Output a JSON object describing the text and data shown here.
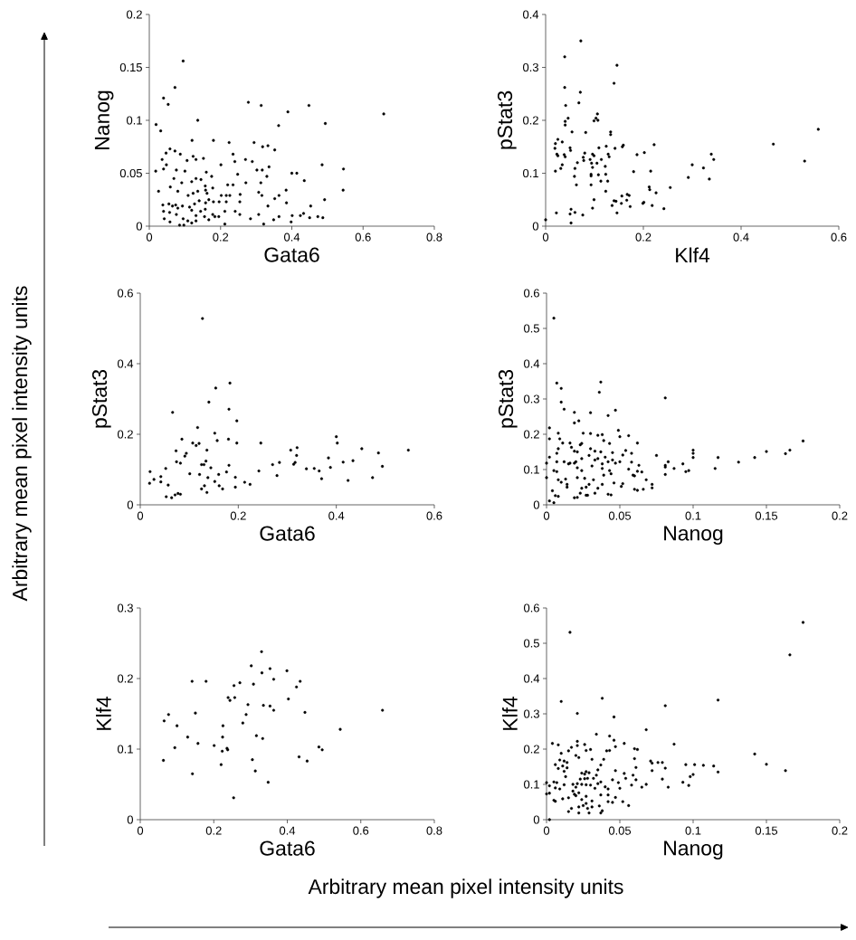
{
  "chart_data": [
    {
      "type": "scatter",
      "xlabel": "Gata6",
      "ylabel": "Nanog",
      "color": "#000000",
      "marker": "circle",
      "xlim": [
        0,
        0.8
      ],
      "ylim": [
        0,
        0.2
      ],
      "xticks": [
        0,
        0.2,
        0.4,
        0.6,
        0.8
      ],
      "yticks": [
        0,
        0.05,
        0.1,
        0.15,
        0.2
      ],
      "annotations": [
        "Arbitrary mean pixel intensity units",
        "Arbitrary mean pixel intensity units"
      ],
      "x": [
        0.095,
        0.072,
        0.04,
        0.053,
        0.136,
        0.019,
        0.032,
        0.278,
        0.314,
        0.389,
        0.448,
        0.494,
        0.363,
        0.658,
        0.12,
        0.18,
        0.224,
        0.294,
        0.318,
        0.333,
        0.352,
        0.058,
        0.072,
        0.047,
        0.087,
        0.036,
        0.106,
        0.123,
        0.131,
        0.152,
        0.235,
        0.24,
        0.27,
        0.289,
        0.201,
        0.018,
        0.04,
        0.048,
        0.076,
        0.1,
        0.16,
        0.248,
        0.302,
        0.317,
        0.336,
        0.4,
        0.414,
        0.485,
        0.545,
        0.435,
        0.544,
        0.33,
        0.313,
        0.271,
        0.22,
        0.235,
        0.175,
        0.384,
        0.364,
        0.352,
        0.333,
        0.385,
        0.453,
        0.492,
        0.026,
        0.059,
        0.069,
        0.091,
        0.119,
        0.131,
        0.145,
        0.157,
        0.158,
        0.08,
        0.136,
        0.109,
        0.123,
        0.162,
        0.178,
        0.202,
        0.216,
        0.226,
        0.255,
        0.254,
        0.307,
        0.316,
        0.038,
        0.055,
        0.065,
        0.074,
        0.08,
        0.093,
        0.113,
        0.127,
        0.14,
        0.158,
        0.167,
        0.18,
        0.196,
        0.216,
        0.04,
        0.057,
        0.076,
        0.119,
        0.131,
        0.144,
        0.157,
        0.178,
        0.195,
        0.212,
        0.241,
        0.254,
        0.284,
        0.307,
        0.042,
        0.058,
        0.085,
        0.095,
        0.097,
        0.108,
        0.119,
        0.131,
        0.155,
        0.167,
        0.184,
        0.212,
        0.321,
        0.349,
        0.364,
        0.401,
        0.398,
        0.424,
        0.433,
        0.45,
        0.473,
        0.487
      ],
      "values": [
        0.156,
        0.131,
        0.121,
        0.115,
        0.1,
        0.096,
        0.09,
        0.117,
        0.114,
        0.108,
        0.114,
        0.097,
        0.095,
        0.106,
        0.081,
        0.081,
        0.079,
        0.079,
        0.075,
        0.076,
        0.072,
        0.073,
        0.071,
        0.069,
        0.068,
        0.063,
        0.062,
        0.066,
        0.063,
        0.064,
        0.068,
        0.061,
        0.063,
        0.061,
        0.058,
        0.052,
        0.054,
        0.058,
        0.053,
        0.052,
        0.051,
        0.049,
        0.053,
        0.053,
        0.056,
        0.05,
        0.05,
        0.058,
        0.054,
        0.043,
        0.034,
        0.047,
        0.041,
        0.041,
        0.039,
        0.039,
        0.047,
        0.034,
        0.029,
        0.026,
        0.019,
        0.022,
        0.019,
        0.025,
        0.033,
        0.037,
        0.045,
        0.041,
        0.042,
        0.045,
        0.044,
        0.038,
        0.034,
        0.033,
        0.033,
        0.029,
        0.031,
        0.031,
        0.036,
        0.029,
        0.029,
        0.029,
        0.03,
        0.023,
        0.032,
        0.029,
        0.02,
        0.021,
        0.019,
        0.02,
        0.017,
        0.019,
        0.018,
        0.021,
        0.024,
        0.022,
        0.025,
        0.023,
        0.023,
        0.023,
        0.014,
        0.013,
        0.011,
        0.015,
        0.01,
        0.014,
        0.016,
        0.011,
        0.009,
        0.014,
        0.014,
        0.011,
        0.007,
        0.011,
        0.007,
        0.004,
        0.001,
        0.007,
        0.001,
        0.005,
        0.003,
        0.005,
        0.009,
        0.006,
        0.009,
        0.002,
        0.002,
        0.006,
        0.009,
        0.01,
        0.004,
        0.01,
        0.012,
        0.008,
        0.009,
        0.008
      ]
    },
    {
      "type": "scatter",
      "xlabel": "Klf4",
      "ylabel": "pStat3",
      "color": "#000000",
      "marker": "circle",
      "xlim": [
        0,
        0.6
      ],
      "ylim": [
        0,
        0.4
      ],
      "xticks": [
        0,
        0.2,
        0.4,
        0.6
      ],
      "yticks": [
        0,
        0.1,
        0.2,
        0.3,
        0.4
      ],
      "x": [
        0,
        0.072,
        0.039,
        0.146,
        0.14,
        0.039,
        0.071,
        0.041,
        0.068,
        0.046,
        0.04,
        0.04,
        0.106,
        0.103,
        0.099,
        0.107,
        0.054,
        0.082,
        0.133,
        0.133,
        0.025,
        0.034,
        0.02,
        0.019,
        0.05,
        0.051,
        0.023,
        0.038,
        0.025,
        0.04,
        0.034,
        0.031,
        0.02,
        0.06,
        0.065,
        0.08,
        0.077,
        0.078,
        0.091,
        0.096,
        0.099,
        0.094,
        0.105,
        0.114,
        0.109,
        0.124,
        0.128,
        0.13,
        0.142,
        0.157,
        0.159,
        0.222,
        0.202,
        0.187,
        0.122,
        0.096,
        0.093,
        0.093,
        0.059,
        0.108,
        0.123,
        0.18,
        0.215,
        0.063,
        0.093,
        0.113,
        0.127,
        0.123,
        0.212,
        0.213,
        0.226,
        0.255,
        0.292,
        0.3,
        0.323,
        0.335,
        0.339,
        0.344,
        0.466,
        0.53,
        0.558,
        0.099,
        0.096,
        0.052,
        0.05,
        0.06,
        0.022,
        0.052,
        0.076,
        0.136,
        0.14,
        0.144,
        0.146,
        0.155,
        0.156,
        0.166,
        0.167,
        0.171,
        0.173,
        0.199,
        0.201,
        0.218,
        0.242
      ],
      "values": [
        0.012,
        0.35,
        0.32,
        0.304,
        0.27,
        0.262,
        0.253,
        0.228,
        0.233,
        0.204,
        0.198,
        0.191,
        0.212,
        0.204,
        0.199,
        0.2,
        0.178,
        0.177,
        0.178,
        0.173,
        0.164,
        0.159,
        0.156,
        0.147,
        0.148,
        0.143,
        0.136,
        0.135,
        0.133,
        0.131,
        0.116,
        0.109,
        0.104,
        0.109,
        0.12,
        0.138,
        0.13,
        0.124,
        0.126,
        0.136,
        0.133,
        0.119,
        0.119,
        0.126,
        0.148,
        0.151,
        0.136,
        0.131,
        0.147,
        0.15,
        0.153,
        0.154,
        0.139,
        0.135,
        0.113,
        0.111,
        0.098,
        0.095,
        0.094,
        0.097,
        0.098,
        0.103,
        0.104,
        0.078,
        0.078,
        0.085,
        0.085,
        0.066,
        0.074,
        0.069,
        0.063,
        0.073,
        0.092,
        0.116,
        0.11,
        0.089,
        0.136,
        0.126,
        0.155,
        0.123,
        0.183,
        0.05,
        0.034,
        0.032,
        0.023,
        0.026,
        0.025,
        0.006,
        0.021,
        0.039,
        0.048,
        0.047,
        0.025,
        0.043,
        0.057,
        0.049,
        0.06,
        0.058,
        0.037,
        0.043,
        0.045,
        0.039,
        0.033
      ]
    },
    {
      "type": "scatter",
      "xlabel": "Gata6",
      "ylabel": "pStat3",
      "color": "#000000",
      "marker": "circle",
      "xlim": [
        0,
        0.6
      ],
      "ylim": [
        0,
        0.6
      ],
      "xticks": [
        0,
        0.2,
        0.4,
        0.6
      ],
      "yticks": [
        0,
        0.2,
        0.4,
        0.6
      ],
      "x": [
        0.127,
        0.183,
        0.154,
        0.14,
        0.181,
        0.066,
        0.197,
        0.117,
        0.152,
        0.085,
        0.157,
        0.18,
        0.197,
        0.107,
        0.114,
        0.12,
        0.246,
        0.073,
        0.136,
        0.094,
        0.091,
        0.074,
        0.082,
        0.125,
        0.13,
        0.134,
        0.144,
        0.176,
        0.181,
        0.101,
        0.121,
        0.138,
        0.16,
        0.02,
        0.019,
        0.028,
        0.042,
        0.042,
        0.052,
        0.057,
        0.053,
        0.064,
        0.071,
        0.077,
        0.082,
        0.125,
        0.131,
        0.136,
        0.152,
        0.161,
        0.168,
        0.194,
        0.194,
        0.213,
        0.224,
        0.242,
        0.27,
        0.279,
        0.284,
        0.307,
        0.313,
        0.316,
        0.319,
        0.32,
        0.339,
        0.355,
        0.365,
        0.37,
        0.384,
        0.388,
        0.4,
        0.402,
        0.414,
        0.424,
        0.434,
        0.452,
        0.474,
        0.486,
        0.494,
        0.547
      ],
      "values": [
        0.528,
        0.345,
        0.331,
        0.291,
        0.271,
        0.262,
        0.238,
        0.219,
        0.203,
        0.186,
        0.182,
        0.186,
        0.175,
        0.175,
        0.168,
        0.174,
        0.175,
        0.153,
        0.155,
        0.146,
        0.138,
        0.122,
        0.118,
        0.114,
        0.114,
        0.124,
        0.105,
        0.093,
        0.112,
        0.088,
        0.086,
        0.077,
        0.086,
        0.094,
        0.061,
        0.072,
        0.08,
        0.065,
        0.103,
        0.056,
        0.023,
        0.02,
        0.028,
        0.032,
        0.03,
        0.045,
        0.054,
        0.035,
        0.066,
        0.054,
        0.045,
        0.078,
        0.05,
        0.064,
        0.058,
        0.096,
        0.114,
        0.083,
        0.12,
        0.155,
        0.115,
        0.12,
        0.14,
        0.162,
        0.102,
        0.103,
        0.096,
        0.074,
        0.133,
        0.106,
        0.193,
        0.175,
        0.121,
        0.069,
        0.125,
        0.159,
        0.077,
        0.147,
        0.109,
        0.155
      ]
    },
    {
      "type": "scatter",
      "xlabel": "Nanog",
      "ylabel": "pStat3",
      "color": "#000000",
      "marker": "circle",
      "xlim": [
        0,
        0.2
      ],
      "ylim": [
        0,
        0.6
      ],
      "xticks": [
        0,
        0.05,
        0.1,
        0.15,
        0.2
      ],
      "yticks": [
        0,
        0.1,
        0.2,
        0.3,
        0.4,
        0.5,
        0.6
      ],
      "x": [
        0.005,
        0.007,
        0.01,
        0.037,
        0.036,
        0.081,
        0.01,
        0.012,
        0.019,
        0.03,
        0.047,
        0.042,
        0.019,
        0.022,
        0.002,
        0.002,
        0.008,
        0.009,
        0.011,
        0.025,
        0.03,
        0.035,
        0.038,
        0.039,
        0.043,
        0.049,
        0.05,
        0.056,
        0.062,
        0.016,
        0.024,
        0.0,
        0.0,
        0.002,
        0.007,
        0.008,
        0.007,
        0.012,
        0.015,
        0.016,
        0.017,
        0.019,
        0.021,
        0.023,
        0.024,
        0.019,
        0.02,
        0.021,
        0.024,
        0.029,
        0.03,
        0.031,
        0.033,
        0.033,
        0.035,
        0.037,
        0.038,
        0.038,
        0.04,
        0.042,
        0.043,
        0.045,
        0.045,
        0.047,
        0.05,
        0.052,
        0.054,
        0.056,
        0.058,
        0.058,
        0.059,
        0.06,
        0.062,
        0.063,
        0.065,
        0.005,
        0.007,
        0.008,
        0.01,
        0.013,
        0.014,
        0.014,
        0.021,
        0.024,
        0.026,
        0.027,
        0.028,
        0.029,
        0.032,
        0.033,
        0.035,
        0.038,
        0.039,
        0.044,
        0.046,
        0.051,
        0.052,
        0.06,
        0.062,
        0.066,
        0.068,
        0.072,
        0.072,
        0.004,
        0.006,
        0.008,
        0.002,
        0.005,
        0.019,
        0.021,
        0.023,
        0.027,
        0.042,
        0.044,
        0.075,
        0.081,
        0.081,
        0.081,
        0.083,
        0.087,
        0.093,
        0.095,
        0.097,
        0.1,
        0.1,
        0.1,
        0.115,
        0.117,
        0.131,
        0.142,
        0.15,
        0.163,
        0.166,
        0.175
      ],
      "values": [
        0.529,
        0.345,
        0.33,
        0.348,
        0.319,
        0.303,
        0.291,
        0.271,
        0.262,
        0.261,
        0.268,
        0.253,
        0.232,
        0.238,
        0.218,
        0.187,
        0.203,
        0.187,
        0.175,
        0.203,
        0.202,
        0.197,
        0.199,
        0.182,
        0.174,
        0.211,
        0.193,
        0.196,
        0.175,
        0.175,
        0.174,
        0.077,
        0.118,
        0.135,
        0.146,
        0.159,
        0.122,
        0.122,
        0.116,
        0.118,
        0.163,
        0.152,
        0.15,
        0.17,
        0.131,
        0.118,
        0.122,
        0.105,
        0.097,
        0.14,
        0.159,
        0.11,
        0.127,
        0.152,
        0.131,
        0.15,
        0.116,
        0.103,
        0.135,
        0.122,
        0.097,
        0.148,
        0.127,
        0.118,
        0.122,
        0.141,
        0.154,
        0.101,
        0.146,
        0.121,
        0.084,
        0.082,
        0.095,
        0.112,
        0.093,
        0.097,
        0.094,
        0.071,
        0.064,
        0.073,
        0.058,
        0.05,
        0.077,
        0.047,
        0.075,
        0.05,
        0.027,
        0.058,
        0.071,
        0.033,
        0.047,
        0.058,
        0.084,
        0.088,
        0.062,
        0.052,
        0.06,
        0.044,
        0.041,
        0.044,
        0.071,
        0.058,
        0.048,
        0.04,
        0.026,
        0.024,
        0.011,
        0.006,
        0.02,
        0.021,
        0.033,
        0.027,
        0.03,
        0.028,
        0.14,
        0.112,
        0.107,
        0.086,
        0.122,
        0.103,
        0.116,
        0.094,
        0.097,
        0.155,
        0.146,
        0.134,
        0.103,
        0.134,
        0.121,
        0.134,
        0.151,
        0.145,
        0.155,
        0.181
      ]
    },
    {
      "type": "scatter",
      "xlabel": "Gata6",
      "ylabel": "Klf4",
      "color": "#000000",
      "marker": "circle",
      "xlim": [
        0,
        0.8
      ],
      "ylim": [
        0,
        0.3
      ],
      "xticks": [
        0,
        0.2,
        0.4,
        0.6,
        0.8
      ],
      "yticks": [
        0,
        0.1,
        0.2,
        0.3
      ],
      "x": [
        0.33,
        0.302,
        0.353,
        0.331,
        0.399,
        0.363,
        0.141,
        0.179,
        0.271,
        0.308,
        0.255,
        0.435,
        0.425,
        0.239,
        0.244,
        0.257,
        0.403,
        0.293,
        0.335,
        0.353,
        0.363,
        0.448,
        0.659,
        0.065,
        0.077,
        0.15,
        0.288,
        0.279,
        0.1,
        0.225,
        0.129,
        0.224,
        0.316,
        0.333,
        0.544,
        0.157,
        0.201,
        0.094,
        0.236,
        0.238,
        0.223,
        0.486,
        0.495,
        0.063,
        0.305,
        0.432,
        0.454,
        0.22,
        0.142,
        0.313,
        0.348,
        0.254
      ],
      "values": [
        0.238,
        0.218,
        0.214,
        0.208,
        0.211,
        0.199,
        0.196,
        0.196,
        0.194,
        0.192,
        0.19,
        0.196,
        0.188,
        0.173,
        0.169,
        0.173,
        0.171,
        0.163,
        0.162,
        0.161,
        0.155,
        0.152,
        0.155,
        0.14,
        0.149,
        0.151,
        0.149,
        0.137,
        0.133,
        0.133,
        0.117,
        0.117,
        0.119,
        0.115,
        0.128,
        0.108,
        0.105,
        0.102,
        0.101,
        0.099,
        0.097,
        0.103,
        0.099,
        0.084,
        0.085,
        0.089,
        0.083,
        0.078,
        0.065,
        0.069,
        0.053,
        0.031
      ]
    },
    {
      "type": "scatter",
      "xlabel": "Nanog",
      "ylabel": "Klf4",
      "color": "#000000",
      "marker": "circle",
      "xlim": [
        0,
        0.2
      ],
      "ylim": [
        0,
        0.6
      ],
      "xticks": [
        0,
        0.05,
        0.1,
        0.15,
        0.2
      ],
      "yticks": [
        0,
        0.1,
        0.2,
        0.3,
        0.4,
        0.5,
        0.6
      ],
      "x": [
        0.175,
        0.166,
        0.016,
        0.01,
        0.038,
        0.117,
        0.081,
        0.021,
        0.046,
        0.068,
        0.034,
        0.043,
        0.004,
        0.008,
        0.021,
        0.021,
        0.026,
        0.046,
        0.047,
        0.053,
        0.087,
        0.017,
        0.015,
        0.027,
        0.03,
        0.041,
        0.043,
        0.06,
        0.062,
        0.01,
        0.02,
        0.022,
        0.031,
        0.039,
        0.06,
        0.142,
        0.006,
        0.009,
        0.012,
        0.014,
        0.008,
        0.011,
        0.014,
        0.012,
        0.037,
        0.035,
        0.061,
        0.071,
        0.072,
        0.076,
        0.079,
        0.081,
        0.072,
        0.095,
        0.101,
        0.107,
        0.114,
        0.117,
        0.15,
        0.163,
        0.024,
        0.026,
        0.027,
        0.029,
        0.034,
        0.047,
        0.053,
        0.059,
        0.013,
        0.023,
        0.026,
        0.028,
        0.032,
        0.045,
        0.054,
        0.061,
        0.079,
        0.093,
        0.097,
        0.098,
        0.1,
        0.0,
        0.002,
        0.005,
        0.007,
        0.012,
        0.018,
        0.02,
        0.021,
        0.024,
        0.027,
        0.03,
        0.033,
        0.035,
        0.037,
        0.04,
        0.042,
        0.049,
        0.05,
        0.058,
        0.065,
        0.068,
        0.083,
        0.0,
        0.002,
        0.006,
        0.009,
        0.005,
        0.006,
        0.011,
        0.015,
        0.018,
        0.019,
        0.02,
        0.022,
        0.024,
        0.027,
        0.031,
        0.037,
        0.042,
        0.047,
        0.042,
        0.045,
        0.052,
        0.056,
        0.015,
        0.017,
        0.022,
        0.022,
        0.025,
        0.027,
        0.028,
        0.029,
        0.031,
        0.036,
        0.038,
        0.037,
        0.002
      ],
      "values": [
        0.559,
        0.467,
        0.531,
        0.335,
        0.344,
        0.339,
        0.323,
        0.301,
        0.291,
        0.255,
        0.242,
        0.237,
        0.216,
        0.212,
        0.222,
        0.21,
        0.213,
        0.225,
        0.207,
        0.216,
        0.214,
        0.205,
        0.195,
        0.196,
        0.199,
        0.195,
        0.196,
        0.201,
        0.199,
        0.188,
        0.182,
        0.176,
        0.171,
        0.171,
        0.173,
        0.186,
        0.156,
        0.169,
        0.166,
        0.162,
        0.145,
        0.152,
        0.147,
        0.137,
        0.155,
        0.141,
        0.148,
        0.166,
        0.16,
        0.162,
        0.162,
        0.146,
        0.139,
        0.156,
        0.156,
        0.154,
        0.152,
        0.135,
        0.157,
        0.139,
        0.132,
        0.129,
        0.136,
        0.133,
        0.126,
        0.139,
        0.131,
        0.126,
        0.122,
        0.115,
        0.116,
        0.117,
        0.117,
        0.113,
        0.117,
        0.113,
        0.115,
        0.106,
        0.097,
        0.122,
        0.128,
        0.105,
        0.096,
        0.107,
        0.105,
        0.099,
        0.1,
        0.092,
        0.102,
        0.1,
        0.099,
        0.098,
        0.089,
        0.102,
        0.107,
        0.093,
        0.087,
        0.105,
        0.089,
        0.098,
        0.092,
        0.1,
        0.092,
        0.073,
        0.075,
        0.09,
        0.087,
        0.055,
        0.052,
        0.059,
        0.062,
        0.081,
        0.072,
        0.068,
        0.076,
        0.057,
        0.066,
        0.053,
        0.07,
        0.07,
        0.063,
        0.051,
        0.049,
        0.051,
        0.04,
        0.023,
        0.032,
        0.036,
        0.019,
        0.04,
        0.046,
        0.032,
        0.019,
        0.036,
        0.039,
        0.025,
        0.019,
        0.0
      ]
    }
  ]
}
